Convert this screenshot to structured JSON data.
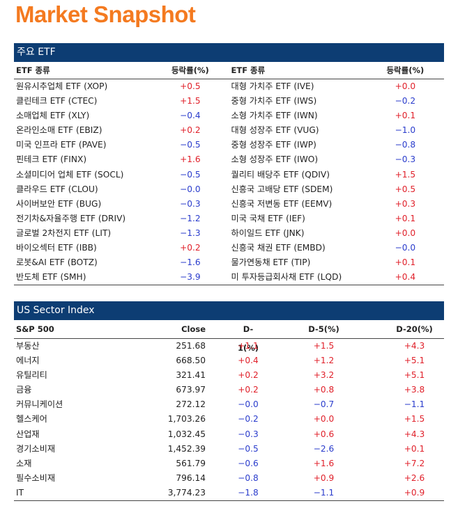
{
  "title": "Market Snapshot",
  "etf_section": {
    "title": "주요 ETF",
    "headers": {
      "name": "ETF 종류",
      "change": "등락률(%)"
    },
    "left": [
      {
        "name": "원유시추업체 ETF (XOP)",
        "change": "+0.5"
      },
      {
        "name": "클린테크 ETF (CTEC)",
        "change": "+1.5"
      },
      {
        "name": "소매업체 ETF (XLY)",
        "change": "−0.4"
      },
      {
        "name": "온라인소매 ETF (EBIZ)",
        "change": "+0.2"
      },
      {
        "name": "미국 인프라 ETF (PAVE)",
        "change": "−0.5"
      },
      {
        "name": "핀테크 ETF (FINX)",
        "change": "+1.6"
      },
      {
        "name": "소셜미디어 업체 ETF (SOCL)",
        "change": "−0.5"
      },
      {
        "name": "클라우드 ETF (CLOU)",
        "change": "−0.0"
      },
      {
        "name": "사이버보안 ETF (BUG)",
        "change": "−0.3"
      },
      {
        "name": "전기차&자율주행 ETF (DRIV)",
        "change": "−1.2"
      },
      {
        "name": "글로벌 2차전지 ETF (LIT)",
        "change": "−1.3"
      },
      {
        "name": "바이오섹터 ETF (IBB)",
        "change": "+0.2"
      },
      {
        "name": "로봇&AI ETF (BOTZ)",
        "change": "−1.6"
      },
      {
        "name": "반도체 ETF (SMH)",
        "change": "−3.9"
      }
    ],
    "right": [
      {
        "name": "대형 가치주 ETF (IVE)",
        "change": "+0.0"
      },
      {
        "name": "중형 가치주 ETF (IWS)",
        "change": "−0.2"
      },
      {
        "name": "소형 가치주 ETF (IWN)",
        "change": "+0.1"
      },
      {
        "name": "대형 성장주 ETF (VUG)",
        "change": "−1.0"
      },
      {
        "name": "중형 성장주 ETF (IWP)",
        "change": "−0.8"
      },
      {
        "name": "소형 성장주 ETF (IWO)",
        "change": "−0.3"
      },
      {
        "name": "퀄리티 배당주 ETF (QDIV)",
        "change": "+1.5"
      },
      {
        "name": "신흥국 고배당 ETF (SDEM)",
        "change": "+0.5"
      },
      {
        "name": "신흥국 저변동 ETF (EEMV)",
        "change": "+0.3"
      },
      {
        "name": "미국 국채 ETF (IEF)",
        "change": "+0.1"
      },
      {
        "name": "하이일드 ETF (JNK)",
        "change": "+0.0"
      },
      {
        "name": "신흥국 채권 ETF (EMBD)",
        "change": "−0.0"
      },
      {
        "name": "물가연동채 ETF (TIP)",
        "change": "+0.1"
      },
      {
        "name": "미 투자등급회사채 ETF (LQD)",
        "change": "+0.4"
      }
    ]
  },
  "sector_section": {
    "title": "US Sector Index",
    "headers": {
      "name": "S&P 500",
      "close": "Close",
      "d1": "D-1(%)",
      "d5": "D-5(%)",
      "d20": "D-20(%)"
    },
    "rows": [
      {
        "name": "부동산",
        "close": "251.68",
        "d1": "+1.1",
        "d5": "+1.5",
        "d20": "+4.3"
      },
      {
        "name": "에너지",
        "close": "668.50",
        "d1": "+0.4",
        "d5": "+1.2",
        "d20": "+5.1"
      },
      {
        "name": "유틸리티",
        "close": "321.41",
        "d1": "+0.2",
        "d5": "+3.2",
        "d20": "+5.1"
      },
      {
        "name": "금융",
        "close": "673.97",
        "d1": "+0.2",
        "d5": "+0.8",
        "d20": "+3.8"
      },
      {
        "name": "커뮤니케이션",
        "close": "272.12",
        "d1": "−0.0",
        "d5": "−0.7",
        "d20": "−1.1"
      },
      {
        "name": "헬스케어",
        "close": "1,703.26",
        "d1": "−0.2",
        "d5": "+0.0",
        "d20": "+1.5"
      },
      {
        "name": "산업재",
        "close": "1,032.45",
        "d1": "−0.3",
        "d5": "+0.6",
        "d20": "+4.3"
      },
      {
        "name": "경기소비재",
        "close": "1,452.39",
        "d1": "−0.5",
        "d5": "−2.6",
        "d20": "+0.1"
      },
      {
        "name": "소재",
        "close": "561.79",
        "d1": "−0.6",
        "d5": "+1.6",
        "d20": "+7.2"
      },
      {
        "name": "필수소비재",
        "close": "796.14",
        "d1": "−0.8",
        "d5": "+0.9",
        "d20": "+2.6"
      },
      {
        "name": "IT",
        "close": "3,774.23",
        "d1": "−1.8",
        "d5": "−1.1",
        "d20": "+0.9"
      }
    ]
  },
  "colors": {
    "title": "#f47a20",
    "bar": "#0d3d73",
    "positive": "#e0202a",
    "negative": "#2a3ccc"
  }
}
